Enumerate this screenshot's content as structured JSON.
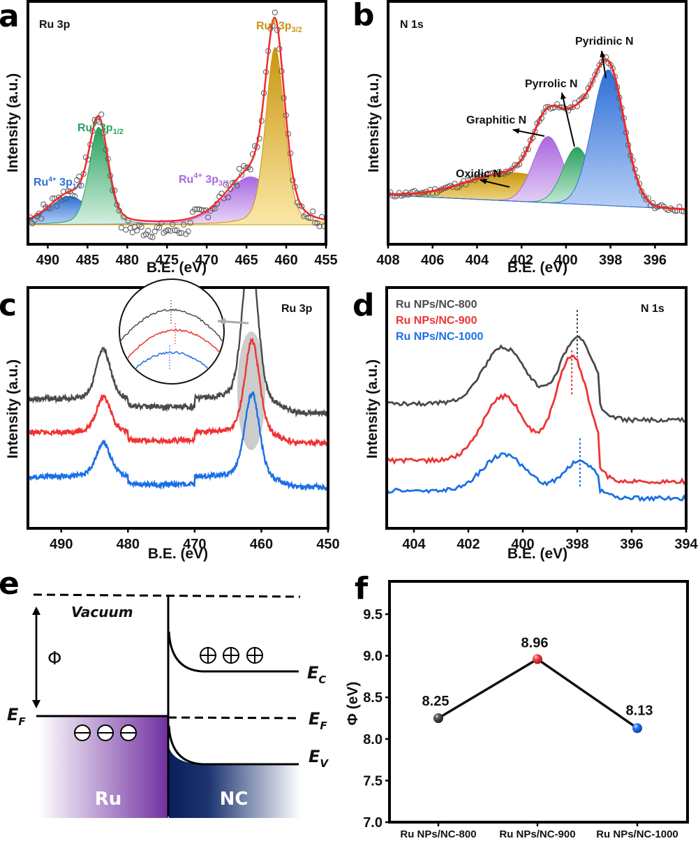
{
  "panel_labels": {
    "a": "a",
    "b": "b",
    "c": "c",
    "d": "d",
    "e": "e",
    "f": "f"
  },
  "colors": {
    "black": "#4a4a4a",
    "red": "#ee3333",
    "blue": "#1a6fe6",
    "fit": "#ee2b2b",
    "ru4_12": "#2e6fd6",
    "ru0_12": "#2aa060",
    "ru4_32": "#a868e0",
    "ru0_32": "#c9960e",
    "pyridinic": "#2e6fd6",
    "pyrrolic": "#2aa060",
    "graphitic": "#a868e0",
    "oxidic": "#c9960e"
  },
  "chart_data": [
    {
      "id": "a",
      "type": "line",
      "title": "Ru 3p",
      "xlabel": "B.E. (eV)",
      "ylabel": "Intensity (a.u.)",
      "xlim": [
        492.5,
        455
      ],
      "ylim": [
        -0.12,
        1.2
      ],
      "xticks": [
        490,
        485,
        480,
        475,
        470,
        465,
        460,
        455
      ],
      "baseline": 0.0,
      "components": [
        {
          "name": "Ru4+ 3p1/2",
          "label_main": "Ru",
          "label_sup": "4+",
          "label_mid": " 3p",
          "label_sub": "1/2",
          "center": 487.3,
          "height": 0.16,
          "fwhm": 6.0,
          "color_key": "ru4_12"
        },
        {
          "name": "Ru0 3p1/2",
          "label_main": "Ru",
          "label_sup": "0",
          "label_mid": " 3p",
          "label_sub": "1/2",
          "center": 483.6,
          "height": 0.55,
          "fwhm": 2.8,
          "color_key": "ru0_12"
        },
        {
          "name": "Ru4+ 3p3/2",
          "label_main": "Ru",
          "label_sup": "4+",
          "label_mid": " 3p",
          "label_sub": "3/2",
          "center": 464.5,
          "height": 0.27,
          "fwhm": 7.5,
          "color_key": "ru4_32"
        },
        {
          "name": "Ru0 3p3/2",
          "label_main": "Ru",
          "label_sup": "0",
          "label_mid": " 3p",
          "label_sub": "3/2",
          "center": 461.4,
          "height": 1.0,
          "fwhm": 2.8,
          "color_key": "ru0_32"
        }
      ]
    },
    {
      "id": "b",
      "type": "line",
      "title": "N 1s",
      "xlabel": "B.E. (eV)",
      "ylabel": "Intensity (a.u.)",
      "xlim": [
        408,
        394.6
      ],
      "ylim": [
        -0.12,
        1.2
      ],
      "xticks": [
        408,
        406,
        404,
        402,
        400,
        398,
        396
      ],
      "components": [
        {
          "name": "Oxidic N",
          "center": 402.3,
          "height": 0.18,
          "fwhm": 5.0,
          "color_key": "oxidic"
        },
        {
          "name": "Graphitic N",
          "center": 400.8,
          "height": 0.42,
          "fwhm": 1.6,
          "color_key": "graphitic"
        },
        {
          "name": "Pyrrolic N",
          "center": 399.5,
          "height": 0.36,
          "fwhm": 1.5,
          "color_key": "pyrrolic"
        },
        {
          "name": "Pyridinic N",
          "center": 398.1,
          "height": 0.86,
          "fwhm": 1.7,
          "color_key": "pyridinic"
        }
      ]
    },
    {
      "id": "c",
      "type": "line",
      "title": "Ru 3p",
      "xlabel": "B.E. (eV)",
      "ylabel": "Intensity (a.u.)",
      "xlim": [
        495,
        450
      ],
      "xticks": [
        490,
        480,
        470,
        460,
        450
      ],
      "series": [
        {
          "name": "Ru NPs/NC-800",
          "color_key": "black",
          "offset": 2.1,
          "p1": [
            483.7,
            0.75
          ],
          "p2": [
            461.7,
            1.53
          ]
        },
        {
          "name": "Ru NPs/NC-900",
          "color_key": "red",
          "offset": 1.2,
          "p1": [
            483.7,
            0.45
          ],
          "p2": [
            461.4,
            0.96
          ]
        },
        {
          "name": "Ru NPs/NC-1000",
          "color_key": "blue",
          "offset": 0.5,
          "p1": [
            483.7,
            0.5
          ],
          "p2": [
            461.4,
            1.07
          ]
        }
      ],
      "inset": {
        "description": "zoom of Ru 3p3/2 peak maxima with dashed markers"
      }
    },
    {
      "id": "d",
      "type": "line",
      "title": "N 1s",
      "xlabel": "B.E. (eV)",
      "ylabel": "Intensity (a.u.)",
      "xlim": [
        405,
        394
      ],
      "xticks": [
        404,
        402,
        400,
        398,
        396,
        394
      ],
      "legend": [
        "Ru NPs/NC-800",
        "Ru NPs/NC-900",
        "Ru NPs/NC-1000"
      ],
      "series": [
        {
          "name": "Ru NPs/NC-800",
          "color_key": "black",
          "peak_marker": 398.0
        },
        {
          "name": "Ru NPs/NC-900",
          "color_key": "red",
          "peak_marker": 398.2
        },
        {
          "name": "Ru NPs/NC-1000",
          "color_key": "blue",
          "peak_marker": 397.9
        }
      ]
    },
    {
      "id": "f",
      "type": "line",
      "title": "",
      "xlabel": "",
      "ylabel": "Φ (eV)",
      "ylim": [
        7.0,
        9.8
      ],
      "yticks": [
        "7.0",
        "7.5",
        "8.0",
        "8.5",
        "9.0",
        "9.5"
      ],
      "categories": [
        "Ru NPs/NC-800",
        "Ru NPs/NC-900",
        "Ru NPs/NC-1000"
      ],
      "values": [
        8.25,
        8.96,
        8.13
      ],
      "value_labels": [
        "8.25",
        "8.96",
        "8.13"
      ],
      "point_colors": [
        "black",
        "red",
        "blue"
      ]
    }
  ],
  "diagram_e": {
    "vacuum": "Vacuum",
    "phi": "Φ",
    "ef_left": "E",
    "ef_left_sub": "F",
    "ec": "E",
    "ec_sub": "C",
    "ef_right": "E",
    "ef_right_sub": "F",
    "ev": "E",
    "ev_sub": "V",
    "ru": "Ru",
    "nc": "NC",
    "plus_symbol": "+",
    "minus_symbol": "−"
  }
}
